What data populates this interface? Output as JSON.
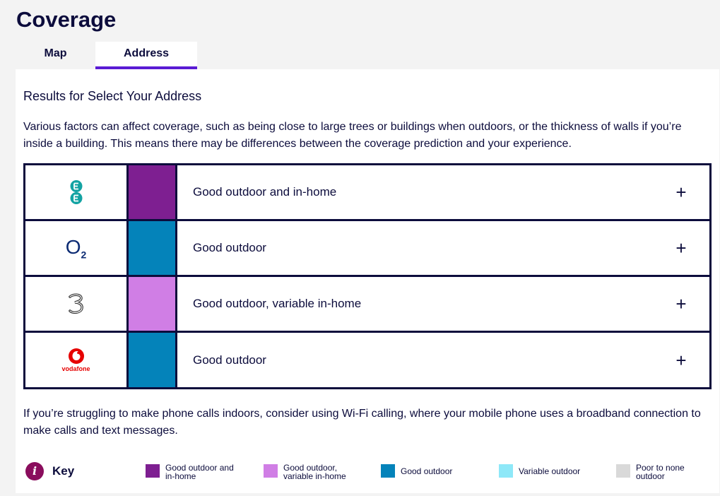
{
  "page": {
    "title": "Coverage"
  },
  "tabs": [
    {
      "label": "Map",
      "active": false
    },
    {
      "label": "Address",
      "active": true
    }
  ],
  "results": {
    "title": "Results for Select Your Address",
    "intro": "Various factors can affect coverage, such as being close to large trees or buildings when outdoors, or the thickness of walls if you’re inside a building. This means there may be differences between the coverage prediction and your experience."
  },
  "operators": [
    {
      "logo": "ee-logo",
      "color": "#7e1f91",
      "label": "Good outdoor and in-home",
      "expand_icon": "plus-icon",
      "expand_label": "+"
    },
    {
      "logo": "o2-logo",
      "logo_text": "O",
      "logo_sub": "2",
      "color": "#0483ba",
      "label": "Good outdoor",
      "expand_icon": "plus-icon",
      "expand_label": "+"
    },
    {
      "logo": "three-logo",
      "color": "#d07ee5",
      "label": "Good outdoor, variable in-home",
      "expand_icon": "plus-icon",
      "expand_label": "+"
    },
    {
      "logo": "vodafone-logo",
      "logo_text": "vodafone",
      "color": "#0483ba",
      "label": "Good outdoor",
      "expand_icon": "plus-icon",
      "expand_label": "+"
    }
  ],
  "footer": {
    "text": "If you’re struggling to make phone calls indoors, consider using Wi-Fi calling, where your mobile phone uses a broadband connection to make calls and text messages."
  },
  "key": {
    "icon": "info-icon",
    "icon_glyph": "i",
    "label": "Key",
    "items": [
      {
        "line1": "Good outdoor and",
        "line2": "in-home",
        "color": "#7e1f91"
      },
      {
        "line1": "Good outdoor,",
        "line2": "variable in-home",
        "color": "#d07ee5"
      },
      {
        "line1": "Good outdoor",
        "line2": "",
        "color": "#0483ba"
      },
      {
        "line1": "Variable outdoor",
        "line2": "",
        "color": "#8ee8f8"
      },
      {
        "line1": "Poor to none",
        "line2": "outdoor",
        "color": "#d9d9d9"
      }
    ]
  }
}
